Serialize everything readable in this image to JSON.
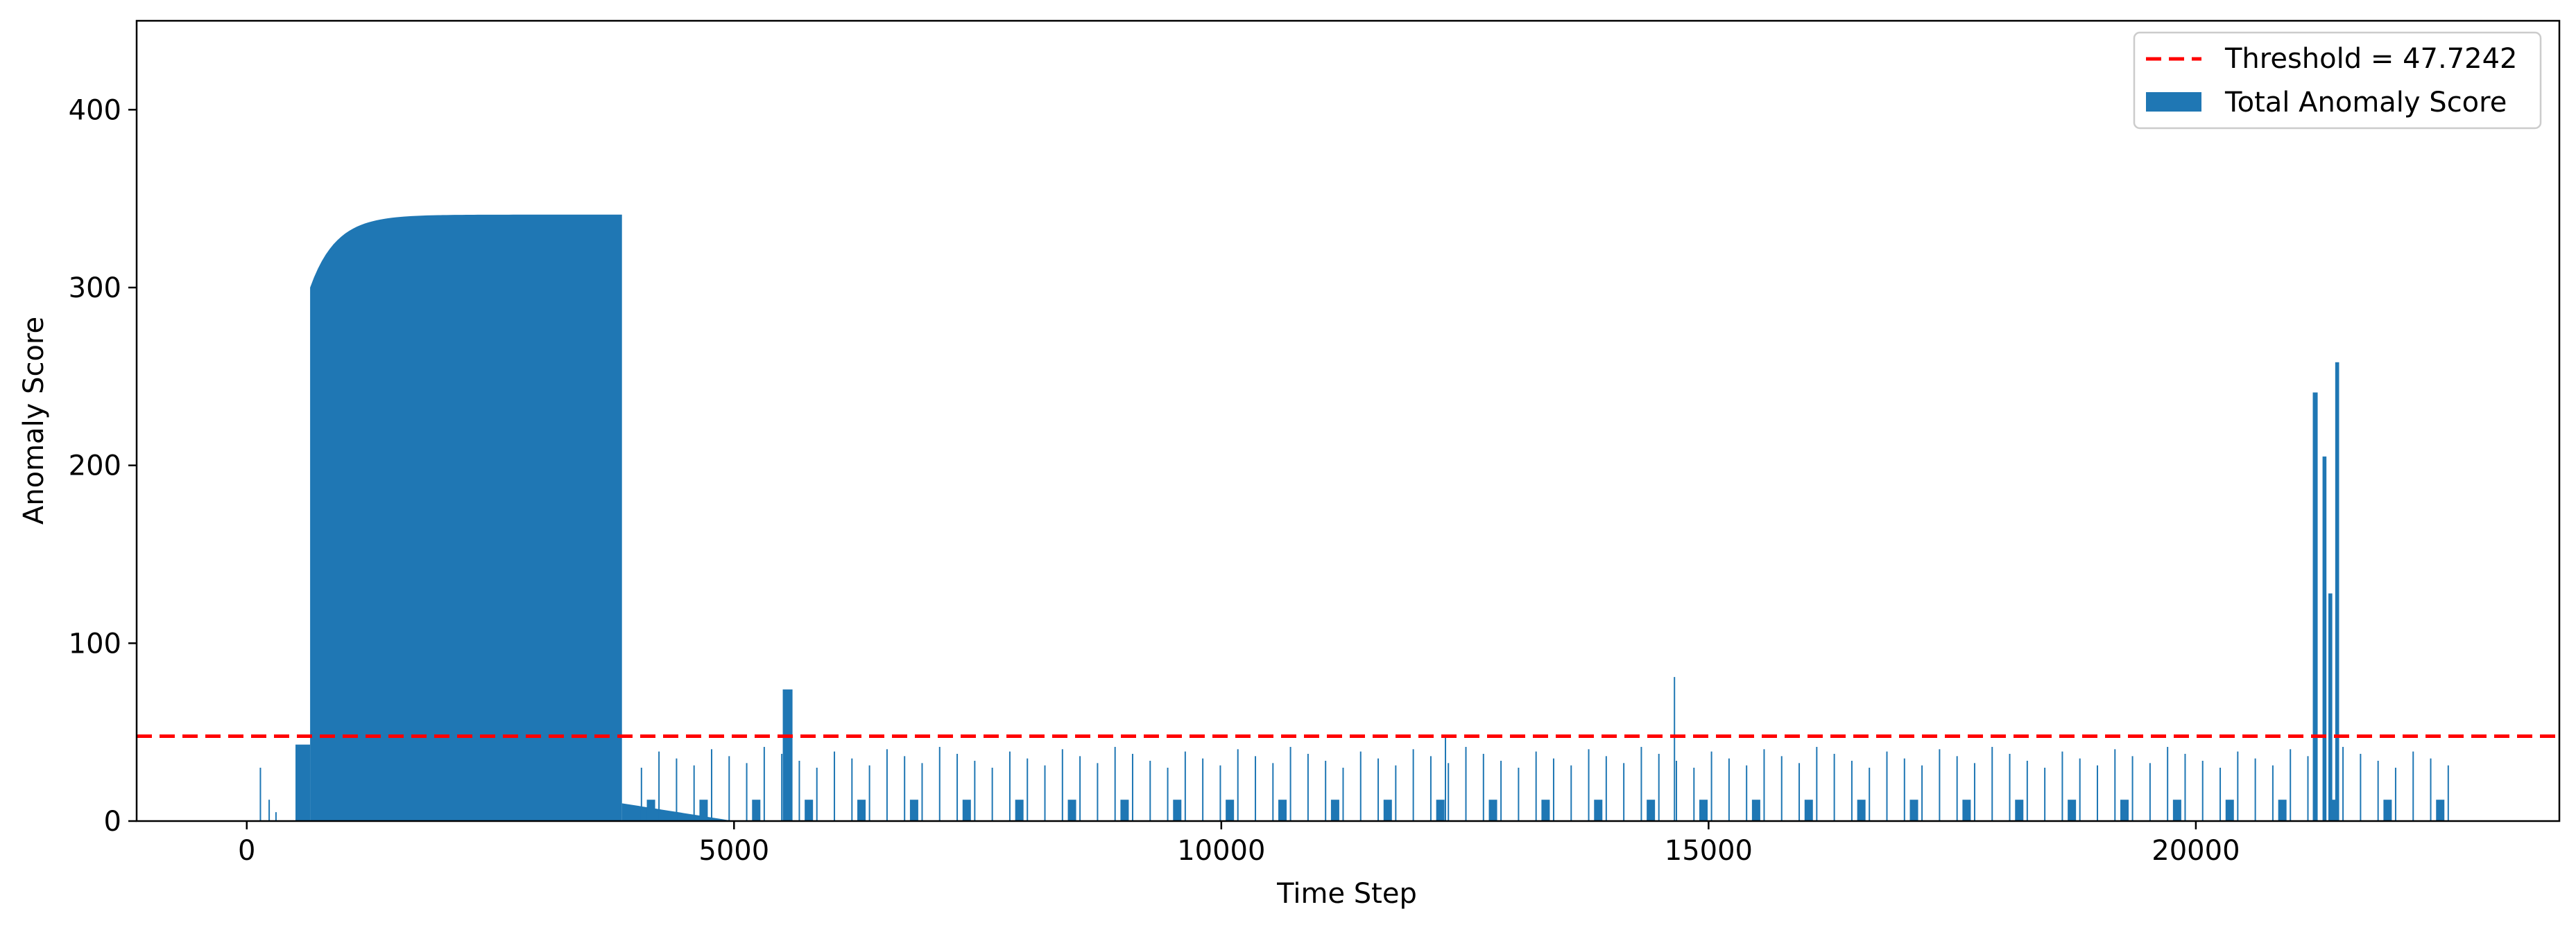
{
  "chart_data": {
    "type": "bar",
    "title": "",
    "xlabel": "Time Step",
    "ylabel": "Anomaly Score",
    "xlim": [
      -1130,
      23730
    ],
    "ylim": [
      0,
      450
    ],
    "x_ticks": [
      0,
      5000,
      10000,
      15000,
      20000
    ],
    "y_ticks": [
      0,
      100,
      200,
      300,
      400
    ],
    "grid": false,
    "legend_position": "top-right",
    "colors": {
      "bar": "#1f77b4",
      "threshold": "#ff0000"
    },
    "threshold": {
      "label": "Threshold = 47.7242",
      "value": 47.7242,
      "style": "dashed"
    },
    "series": [
      {
        "name": "Total Anomaly Score",
        "segments": [
          {
            "x": [
              500,
              650
            ],
            "y": 43
          },
          {
            "x": [
              650,
              3850
            ],
            "y": 341,
            "shape": "plateau"
          },
          {
            "x": [
              3850,
              5000
            ],
            "y": 10,
            "shape": "decay"
          },
          {
            "x": [
              5500,
              5600
            ],
            "y": 74
          },
          {
            "x": [
              21200,
              21250
            ],
            "y": 241
          },
          {
            "x": [
              21300,
              21340
            ],
            "y": 205
          },
          {
            "x": [
              21360,
              21400
            ],
            "y": 128
          },
          {
            "x": [
              21430,
              21470
            ],
            "y": 258
          }
        ],
        "spikes": [
          {
            "x": 140,
            "y": 30
          },
          {
            "x": 230,
            "y": 12
          },
          {
            "x": 300,
            "y": 5
          },
          {
            "x": 12300,
            "y": 48
          },
          {
            "x": 14650,
            "y": 81
          },
          {
            "x": 21220,
            "y": 80
          },
          {
            "x": 21320,
            "y": 170
          },
          {
            "x": 21450,
            "y": 135
          }
        ],
        "periodic_spikes": {
          "start": 4050,
          "end": 22650,
          "spacing": 180,
          "height_range": [
            30,
            43
          ]
        }
      }
    ]
  }
}
